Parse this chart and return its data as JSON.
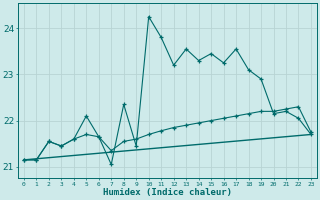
{
  "title": "",
  "xlabel": "Humidex (Indice chaleur)",
  "bg_color": "#ceeaea",
  "grid_color": "#b8d4d4",
  "line_color": "#006b6b",
  "xlim": [
    -0.5,
    23.5
  ],
  "ylim": [
    20.75,
    24.55
  ],
  "yticks": [
    21,
    22,
    23,
    24
  ],
  "xticks": [
    0,
    1,
    2,
    3,
    4,
    5,
    6,
    7,
    8,
    9,
    10,
    11,
    12,
    13,
    14,
    15,
    16,
    17,
    18,
    19,
    20,
    21,
    22,
    23
  ],
  "line1_x": [
    0,
    1,
    2,
    3,
    4,
    5,
    6,
    7,
    8,
    9,
    10,
    11,
    12,
    13,
    14,
    15,
    16,
    17,
    18,
    19,
    20,
    21,
    22,
    23
  ],
  "line1_y": [
    21.15,
    21.15,
    21.55,
    21.45,
    21.6,
    22.1,
    21.65,
    21.05,
    22.35,
    21.45,
    24.25,
    23.8,
    23.2,
    23.55,
    23.3,
    23.45,
    23.25,
    23.55,
    23.1,
    22.9,
    22.15,
    22.2,
    22.05,
    21.7
  ],
  "line2_x": [
    0,
    1,
    2,
    3,
    4,
    5,
    6,
    7,
    8,
    9,
    10,
    11,
    12,
    13,
    14,
    15,
    16,
    17,
    18,
    19,
    20,
    21,
    22,
    23
  ],
  "line2_y": [
    21.15,
    21.15,
    21.55,
    21.45,
    21.6,
    21.7,
    21.65,
    21.35,
    21.55,
    21.6,
    21.7,
    21.78,
    21.85,
    21.9,
    21.95,
    22.0,
    22.05,
    22.1,
    22.15,
    22.2,
    22.2,
    22.25,
    22.3,
    21.75
  ],
  "line3_x": [
    0,
    23
  ],
  "line3_y": [
    21.15,
    21.7
  ]
}
